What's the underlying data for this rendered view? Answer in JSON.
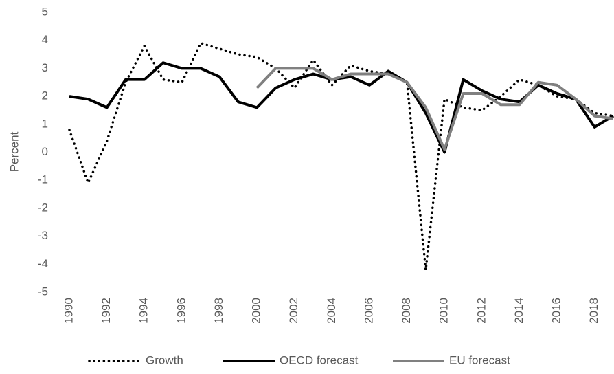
{
  "chart_data": {
    "type": "line",
    "y_label": "Percent",
    "x": [
      1990,
      1991,
      1992,
      1993,
      1994,
      1995,
      1996,
      1997,
      1998,
      1999,
      2000,
      2001,
      2002,
      2003,
      2004,
      2005,
      2006,
      2007,
      2008,
      2009,
      2010,
      2011,
      2012,
      2013,
      2014,
      2015,
      2016,
      2017,
      2018,
      2019
    ],
    "xlim": [
      1990,
      2019
    ],
    "xticks": [
      1990,
      1992,
      1994,
      1996,
      1998,
      2000,
      2002,
      2004,
      2006,
      2008,
      2010,
      2012,
      2014,
      2016,
      2018
    ],
    "ylim": [
      -5,
      5
    ],
    "yticks": [
      -5,
      -4,
      -3,
      -2,
      -1,
      0,
      1,
      2,
      3,
      4,
      5
    ],
    "grid": false,
    "legend": "bottom",
    "series": [
      {
        "name": "Growth",
        "color": "#000000",
        "style": "dotted",
        "values": [
          0.8,
          -1.1,
          0.4,
          2.5,
          3.8,
          2.6,
          2.5,
          3.9,
          3.7,
          3.5,
          3.4,
          3.0,
          2.3,
          3.3,
          2.4,
          3.1,
          2.9,
          2.8,
          2.5,
          -4.2,
          1.9,
          1.6,
          1.5,
          2.0,
          2.6,
          2.4,
          2.0,
          1.9,
          1.4,
          1.3
        ]
      },
      {
        "name": "OECD forecast",
        "color": "#000000",
        "style": "solid",
        "values": [
          2.0,
          1.9,
          1.6,
          2.6,
          2.6,
          3.2,
          3.0,
          3.0,
          2.7,
          1.8,
          1.6,
          2.3,
          2.6,
          2.8,
          2.6,
          2.7,
          2.4,
          2.9,
          2.5,
          1.4,
          0.0,
          2.6,
          2.2,
          1.9,
          1.8,
          2.4,
          2.1,
          1.9,
          0.9,
          1.3
        ]
      },
      {
        "name": "EU forecast",
        "color": "#808080",
        "style": "solid",
        "values": [
          null,
          null,
          null,
          null,
          null,
          null,
          null,
          null,
          null,
          null,
          2.3,
          3.0,
          3.0,
          3.0,
          2.6,
          2.8,
          2.8,
          2.8,
          2.5,
          1.6,
          0.1,
          2.1,
          2.1,
          1.7,
          1.7,
          2.5,
          2.4,
          1.9,
          1.3,
          1.2
        ]
      }
    ]
  }
}
